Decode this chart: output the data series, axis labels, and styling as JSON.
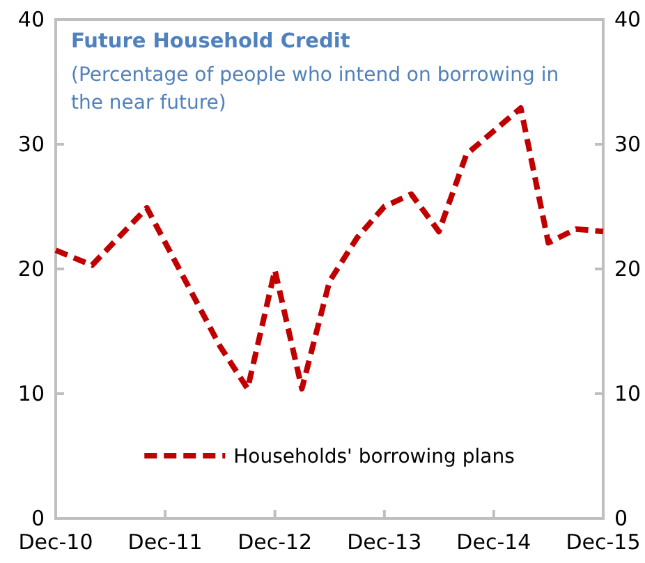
{
  "chart_data": {
    "type": "line",
    "title": "Future Household Credit",
    "subtitle": "(Percentage of people who intend on borrowing in the near future)",
    "x": [
      "2010-12",
      "2011-04",
      "2011-10",
      "2012-06",
      "2012-09",
      "2012-12",
      "2013-03",
      "2013-06",
      "2013-09",
      "2013-12",
      "2014-03",
      "2014-06",
      "2014-09",
      "2015-03",
      "2015-06",
      "2015-09",
      "2015-12"
    ],
    "series": [
      {
        "name": "Households' borrowing plans",
        "color": "#c00000",
        "values": [
          21.5,
          20.3,
          24.9,
          13.8,
          10.4,
          19.9,
          10.4,
          19.0,
          22.5,
          25.0,
          26.0,
          23.0,
          29.2,
          32.9,
          22.1,
          23.2,
          23.0
        ]
      }
    ],
    "xlim": [
      "2010-12",
      "2015-12"
    ],
    "xticks": [
      {
        "value": "2010-12",
        "label": "Dec-10"
      },
      {
        "value": "2011-12",
        "label": "Dec-11"
      },
      {
        "value": "2012-12",
        "label": "Dec-12"
      },
      {
        "value": "2013-12",
        "label": "Dec-13"
      },
      {
        "value": "2014-12",
        "label": "Dec-14"
      },
      {
        "value": "2015-12",
        "label": "Dec-15"
      }
    ],
    "ylim": [
      0,
      40
    ],
    "yticks": [
      0,
      10,
      20,
      30,
      40
    ],
    "y2lim": [
      0,
      40
    ],
    "y2ticks": [
      0,
      10,
      20,
      30,
      40
    ],
    "grid": false,
    "legend": "bottom",
    "line_style": "dashed",
    "marker": "none"
  }
}
